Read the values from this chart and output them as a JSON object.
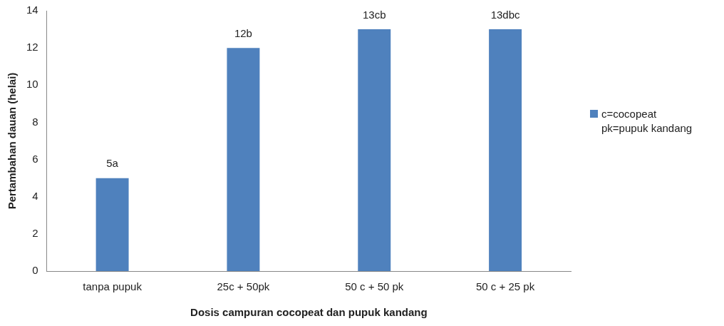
{
  "chart_data": {
    "type": "bar",
    "xlabel": "Dosis campuran cocopeat dan pupuk kandang",
    "ylabel": "Pertambahan dauan (helai)",
    "categories": [
      "tanpa pupuk",
      "25c + 50pk",
      "50 c + 50 pk",
      "50 c + 25 pk"
    ],
    "series": [
      {
        "name": "c=cocopeat\npk=pupuk kandang",
        "color": "#4f81bd",
        "values": [
          5,
          12,
          13,
          13
        ],
        "value_labels": [
          "5a",
          "12b",
          "13cb",
          "13dbc"
        ]
      }
    ],
    "ylim": [
      0,
      14
    ],
    "yticks": [
      0,
      2,
      4,
      6,
      8,
      10,
      12,
      14
    ],
    "grid": false,
    "legend": "right"
  }
}
